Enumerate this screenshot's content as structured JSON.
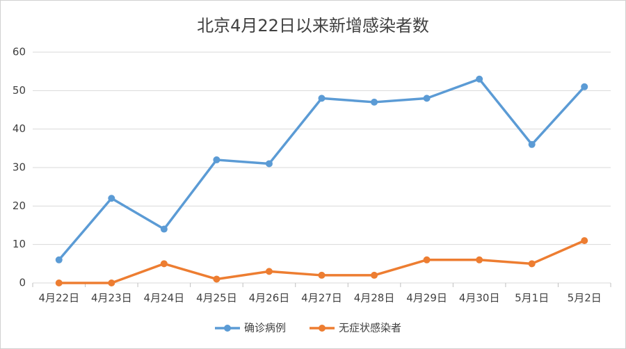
{
  "chart_data": {
    "type": "line",
    "title": "北京4月22日以来新增感染者数",
    "categories": [
      "4月22日",
      "4月23日",
      "4月24日",
      "4月25日",
      "4月26日",
      "4月27日",
      "4月28日",
      "4月29日",
      "4月30日",
      "5月1日",
      "5月2日"
    ],
    "series": [
      {
        "name": "确诊病例",
        "color": "#5b9bd5",
        "values": [
          6,
          22,
          14,
          32,
          31,
          48,
          47,
          48,
          53,
          36,
          51
        ]
      },
      {
        "name": "无症状感染者",
        "color": "#ed7d31",
        "values": [
          0,
          0,
          5,
          1,
          3,
          2,
          2,
          6,
          6,
          5,
          11
        ]
      }
    ],
    "ylim": [
      0,
      60
    ],
    "yticks": [
      0,
      10,
      20,
      30,
      40,
      50,
      60
    ],
    "grid": true,
    "legend": "bottom"
  }
}
